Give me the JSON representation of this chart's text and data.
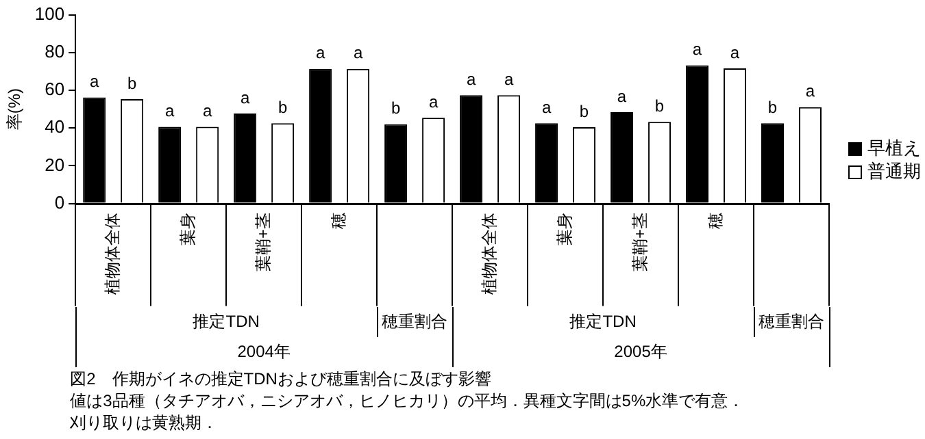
{
  "chart_data": {
    "type": "bar",
    "ylabel": "率(%)",
    "categories": [
      "植物体全体",
      "葉身",
      "葉鞘+茎",
      "穂",
      null,
      "植物体全体",
      "葉身",
      "葉鞘+茎",
      "穂",
      null
    ],
    "series": [
      {
        "name": "早植え",
        "color": "#000000",
        "values": [
          56.2,
          40.6,
          47.7,
          71.3,
          42.0,
          57.4,
          42.5,
          48.4,
          73.2,
          42.5
        ],
        "value_labels": [
          "a",
          "a",
          "a",
          "a",
          "b",
          "a",
          "a",
          "a",
          "a",
          "b"
        ]
      },
      {
        "name": "普通期",
        "color": "#ffffff",
        "values": [
          55.3,
          40.6,
          42.5,
          71.3,
          45.4,
          57.4,
          40.4,
          43.2,
          71.6,
          51.0
        ],
        "value_labels": [
          "b",
          "a",
          "b",
          "a",
          "a",
          "a",
          "b",
          "b",
          "a",
          "a"
        ]
      }
    ],
    "ylim": [
      0,
      100
    ],
    "yticks": [
      0,
      20,
      40,
      60,
      80,
      100
    ],
    "grid": false,
    "legend": "right",
    "annotations": [
      "推定TDN",
      "穂重割合",
      "推定TDN",
      "穂重割合",
      "2004年",
      "2005年",
      "図2　作期がイネの推定TDNおよび穂重割合に及ぼす影響",
      "値は3品種（タチアオバ，ニシアオバ，ヒノヒカリ）の平均．異種文字間は5%水準で有意．",
      "刈り取りは黄熟期．"
    ]
  }
}
